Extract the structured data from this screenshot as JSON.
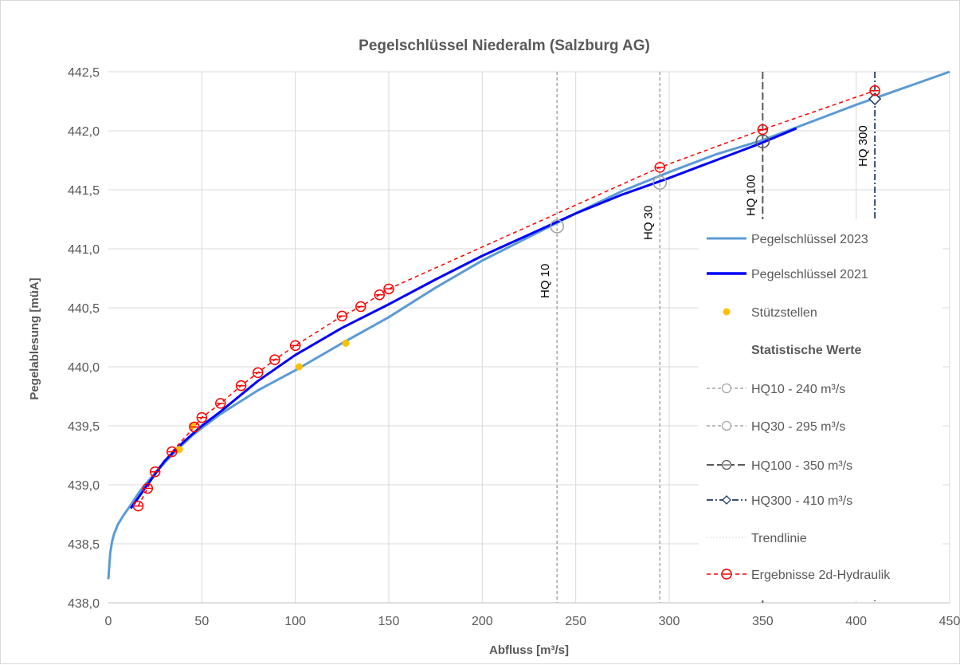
{
  "chart_data": {
    "type": "line",
    "title": "Pegelschlüssel Niederalm (Salzburg AG)",
    "xlabel": "Abfluss [m³/s]",
    "ylabel": "Pegelablesung [müA]",
    "xlim": [
      0,
      450
    ],
    "ylim": [
      438.0,
      442.5
    ],
    "x_ticks": [
      0,
      50,
      100,
      150,
      200,
      250,
      300,
      350,
      400,
      450
    ],
    "x_tick_labels": [
      "0",
      "50",
      "100",
      "150",
      "200",
      "250",
      "300",
      "350",
      "400",
      "450"
    ],
    "y_ticks": [
      438.0,
      438.5,
      439.0,
      439.5,
      440.0,
      440.5,
      441.0,
      441.5,
      442.0,
      442.5
    ],
    "y_tick_labels": [
      "438,0",
      "438,5",
      "439,0",
      "439,5",
      "440,0",
      "440,5",
      "441,0",
      "441,5",
      "442,0",
      "442,5"
    ],
    "grid": true,
    "legend_position": "right",
    "series": [
      {
        "name": "Pegelschlüssel 2023",
        "color": "#5b9bd5",
        "x": [
          0,
          1,
          2,
          3,
          5,
          8,
          12,
          17,
          25,
          35,
          45,
          60,
          80,
          100,
          125,
          150,
          175,
          200,
          225,
          250,
          275,
          300,
          325,
          350,
          375,
          400,
          425,
          450
        ],
        "y": [
          438.2,
          438.42,
          438.52,
          438.58,
          438.66,
          438.74,
          438.83,
          438.95,
          439.1,
          439.27,
          439.42,
          439.6,
          439.8,
          439.97,
          440.2,
          440.42,
          440.67,
          440.9,
          441.1,
          441.3,
          441.49,
          441.65,
          441.8,
          441.92,
          442.07,
          442.22,
          442.36,
          442.5
        ]
      },
      {
        "name": "Pegelschlüssel 2021",
        "color": "#0000ff",
        "x": [
          12,
          20,
          30,
          40,
          50,
          60,
          80,
          100,
          125,
          150,
          175,
          200,
          225,
          250,
          275,
          300,
          325,
          350,
          368
        ],
        "y": [
          438.8,
          438.98,
          439.2,
          439.36,
          439.5,
          439.62,
          439.88,
          440.1,
          440.33,
          440.53,
          440.74,
          440.94,
          441.12,
          441.3,
          441.46,
          441.6,
          441.75,
          441.9,
          442.02
        ]
      }
    ],
    "stuetzstellen": {
      "name": "Stützstellen",
      "color": "#ffc000",
      "x": [
        38,
        45,
        102,
        127
      ],
      "y": [
        439.3,
        439.5,
        440.0,
        440.2
      ]
    },
    "legend_heading": "Statistische Werte",
    "hq_lines": [
      {
        "name": "HQ10 - 240 m³/s",
        "label": "HQ 10",
        "x": 240,
        "y": 441.19,
        "color": "#a6a6a6",
        "marker": "circle"
      },
      {
        "name": "HQ30 - 295 m³/s",
        "label": "HQ 30",
        "x": 295,
        "y": 441.56,
        "color": "#a6a6a6",
        "marker": "circle"
      },
      {
        "name": "HQ100 - 350 m³/s",
        "label": "HQ 100",
        "x": 350,
        "y": 441.91,
        "color": "#595959",
        "marker": "circle-bar"
      },
      {
        "name": "HQ300 - 410 m³/s",
        "label": "HQ 300",
        "x": 410,
        "y": 442.27,
        "color": "#203864",
        "marker": "diamond"
      }
    ],
    "trendline": {
      "name": "Trendlinie",
      "color": "#d9d9d9"
    },
    "hydraulik": {
      "name": "Ergebnisse 2d-Hydraulik",
      "color": "#ff0000",
      "x": [
        16,
        21,
        25,
        34,
        46,
        50,
        60,
        71,
        80,
        89,
        100,
        125,
        135,
        145,
        150,
        295,
        350,
        410
      ],
      "y": [
        438.82,
        438.97,
        439.11,
        439.28,
        439.49,
        439.57,
        439.69,
        439.84,
        439.95,
        440.06,
        440.18,
        440.43,
        440.51,
        440.61,
        440.66,
        441.69,
        442.01,
        442.34
      ]
    }
  }
}
